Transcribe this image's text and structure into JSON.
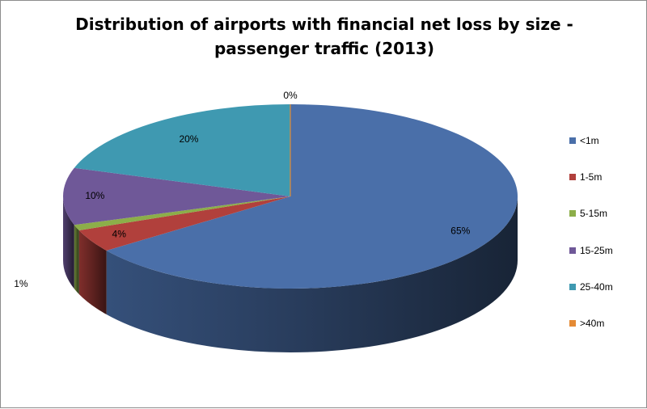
{
  "chart_data": {
    "type": "pie",
    "title_lines": [
      "Distribution of airports with financial net loss by size -",
      "passenger traffic (2013)"
    ],
    "categories": [
      "<1m",
      "1-5m",
      "5-15m",
      "15-25m",
      "25-40m",
      ">40m"
    ],
    "values": [
      65,
      4,
      1,
      10,
      20,
      0
    ],
    "data_labels": [
      "65%",
      "4%",
      "1%",
      "10%",
      "20%",
      "0%"
    ],
    "colors": [
      "#4a6fa9",
      "#b1403c",
      "#8cae49",
      "#6f5898",
      "#3f99b1",
      "#e48a35"
    ],
    "style": "3d",
    "legend_position": "right"
  }
}
